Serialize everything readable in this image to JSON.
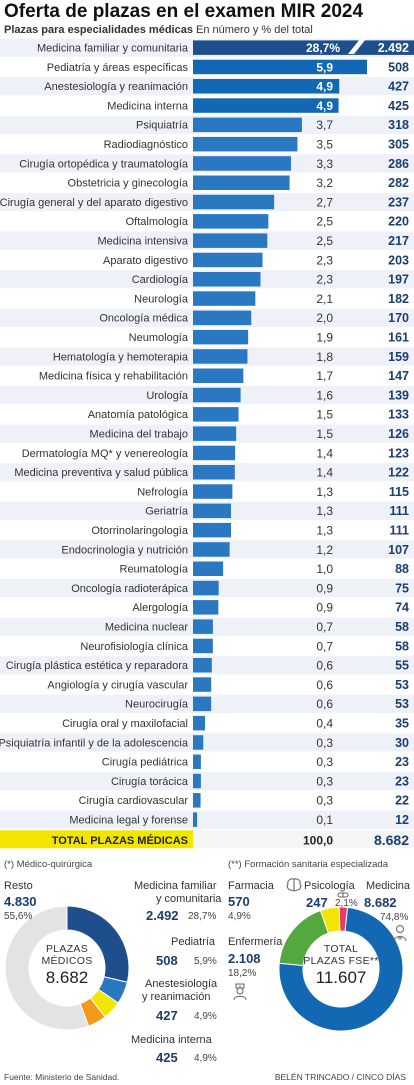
{
  "header": {
    "title": "Oferta de plazas en el examen MIR 2024",
    "subtitle_bold": "Plazas para especialidades médicas",
    "subtitle_rest": " En número y % del total"
  },
  "colors": {
    "dark_blue": "#1f4e8c",
    "blue": "#1268b3",
    "light_blue": "#2a78c2",
    "yellow": "#f2e600",
    "orange": "#f29a1c",
    "green": "#55a83e",
    "pink": "#e73b6e",
    "gray": "#e3e3e3"
  },
  "chart_data": [
    {
      "type": "bar",
      "orientation": "horizontal",
      "categories": [
        "Medicina familiar y comunitaria",
        "Pediatría y áreas específicas",
        "Anestesiología y reanimación",
        "Medicina interna",
        "Psiquiatría",
        "Radiodiagnóstico",
        "Cirugía ortopédica y traumatología",
        "Obstetricia y ginecología",
        "Cirugía general y del aparato digestivo",
        "Oftalmología",
        "Medicina intensiva",
        "Aparato digestivo",
        "Cardiología",
        "Neurología",
        "Oncología médica",
        "Neumología",
        "Hematología y hemoterapia",
        "Medicina física y rehabilitación",
        "Urología",
        "Anatomía patológica",
        "Medicina del trabajo",
        "Dermatología MQ* y venereología",
        "Medicina preventiva y salud pública",
        "Nefrología",
        "Geriatría",
        "Otorrinolaringología",
        "Endocrinología y nutrición",
        "Reumatología",
        "Oncología radioterápica",
        "Alergología",
        "Medicina nuclear",
        "Neurofisiología clínica",
        "Cirugía plástica estética y reparadora",
        "Angiología y cirugía vascular",
        "Neurocirugía",
        "Cirugía oral y maxilofacial",
        "Psiquiatría infantil y de la adolescencia",
        "Cirugía pediátrica",
        "Cirugía torácica",
        "Cirugía cardiovascular",
        "Medicina legal y forense"
      ],
      "series": [
        {
          "values": [
            2492,
            508,
            427,
            425,
            318,
            305,
            286,
            282,
            237,
            220,
            217,
            203,
            197,
            182,
            170,
            161,
            159,
            147,
            139,
            133,
            126,
            123,
            122,
            115,
            111,
            111,
            107,
            88,
            75,
            74,
            58,
            58,
            55,
            53,
            53,
            35,
            30,
            23,
            23,
            22,
            12
          ]
        }
      ],
      "pct_labels": [
        "28,7%",
        "5,9",
        "4,9",
        "4,9",
        "3,7",
        "3,5",
        "3,3",
        "3,2",
        "2,7",
        "2,5",
        "2,5",
        "2,3",
        "2,3",
        "2,1",
        "2,0",
        "1,9",
        "1,8",
        "1,7",
        "1,6",
        "1,5",
        "1,5",
        "1,4",
        "1,4",
        "1,3",
        "1,3",
        "1,3",
        "1,2",
        "1,0",
        "0,9",
        "0,9",
        "0,7",
        "0,7",
        "0,6",
        "0,6",
        "0,6",
        "0,4",
        "0,3",
        "0,3",
        "0,3",
        "0,3",
        "0,1"
      ],
      "value_labels": [
        "2.492",
        "508",
        "427",
        "425",
        "318",
        "305",
        "286",
        "282",
        "237",
        "220",
        "217",
        "203",
        "197",
        "182",
        "170",
        "161",
        "159",
        "147",
        "139",
        "133",
        "126",
        "123",
        "122",
        "115",
        "111",
        "111",
        "107",
        "88",
        "75",
        "74",
        "58",
        "58",
        "55",
        "53",
        "53",
        "35",
        "30",
        "23",
        "23",
        "22",
        "12"
      ],
      "axis_break_on_first": true,
      "total": {
        "label": "TOTAL PLAZAS MÉDICAS",
        "pct": "100,0",
        "value": "8.682"
      }
    },
    {
      "type": "pie",
      "variant": "donut",
      "categories": [
        "Medicina familiar y comunitaria",
        "Pediatría",
        "Anestesiología y reanimación",
        "Medicina interna",
        "Resto"
      ],
      "values": [
        2492,
        508,
        427,
        425,
        4830
      ],
      "center": {
        "line1": "PLAZAS",
        "line2": "MÉDICOS",
        "value": "8.682"
      }
    },
    {
      "type": "pie",
      "variant": "donut",
      "categories": [
        "Medicina",
        "Enfermería",
        "Farmacia",
        "Psicología"
      ],
      "values": [
        8682,
        2108,
        570,
        247
      ],
      "center": {
        "line1": "TOTAL",
        "line2": "PLAZAS FSE**",
        "value": "11.607"
      }
    }
  ],
  "donut1_labels": {
    "heading": "(*) Médico-quirúrgica",
    "resto": {
      "name": "Resto",
      "value": "4.830",
      "pct": "55,6%"
    },
    "mfyc": {
      "name1": "Medicina familiar",
      "name2": "y comunitaria",
      "value": "2.492",
      "pct": "28,7%"
    },
    "ped": {
      "name": "Pediatría",
      "value": "508",
      "pct": "5,9%"
    },
    "anes": {
      "name1": "Anestesiología",
      "name2": "y reanimación",
      "value": "427",
      "pct": "4,9%"
    },
    "mi": {
      "name": "Medicina interna",
      "value": "425",
      "pct": "4,9%"
    }
  },
  "donut2_labels": {
    "heading": "(**) Formación sanitaria especializada",
    "farmacia": {
      "name": "Farmacia",
      "value": "570",
      "pct": "4,9%"
    },
    "psico": {
      "name": "Psicología",
      "value": "247",
      "pct": "2,1%"
    },
    "medicina": {
      "name": "Medicina",
      "value": "8.682",
      "pct": "74,8%"
    },
    "enfermeria": {
      "name": "Enfermería",
      "value": "2.108",
      "pct": "18,2%"
    }
  },
  "icons": [
    "brain-icon",
    "pill-icon",
    "doctor-icon",
    "nurse-icon"
  ],
  "footer": {
    "source": "Fuente: Ministerio de Sanidad.",
    "credit": "BELÉN TRINCADO / CINCO DÍAS"
  }
}
